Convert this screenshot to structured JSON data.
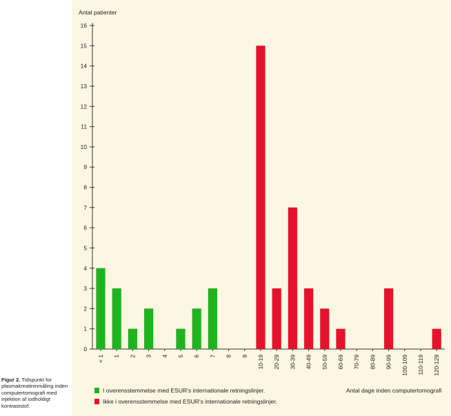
{
  "caption": {
    "label": "Figur 2.",
    "text": "Tidspunkt for plasmakreatininmåling inden computertomografi med injektion af iodholdigt kontraststof."
  },
  "colors": {
    "panel_bg": "#fbf7e2",
    "green": "#1db41d",
    "red": "#e8102a",
    "axis": "#333333"
  },
  "chart_data": {
    "type": "bar",
    "title": "",
    "ylabel": "Antal patienter",
    "xlabel": "Antal dage inden computertomografi",
    "ylim": [
      0,
      16
    ],
    "yticks": [
      0,
      1,
      2,
      3,
      4,
      5,
      6,
      7,
      8,
      9,
      10,
      11,
      12,
      13,
      14,
      15,
      16
    ],
    "categories": [
      "< 1",
      "1",
      "2",
      "3",
      "4",
      "5",
      "6",
      "7",
      "8",
      "9",
      "10-19",
      "20-29",
      "30-39",
      "40-49",
      "50-59",
      "60-69",
      "70-79",
      "80-89",
      "90-99",
      "100-109",
      "110-119",
      "120-129"
    ],
    "series": [
      {
        "name": "I overensstemmelse med ESUR's internationale retningslinjer.",
        "color": "#1db41d",
        "values": [
          4,
          3,
          1,
          2,
          0,
          1,
          2,
          3,
          0,
          0,
          0,
          0,
          0,
          0,
          0,
          0,
          0,
          0,
          0,
          0,
          0,
          0
        ]
      },
      {
        "name": "Ikke i overensstemmelse med ESUR's internationale retningslinjer.",
        "color": "#e8102a",
        "values": [
          0,
          0,
          0,
          0,
          0,
          0,
          0,
          0,
          0,
          0,
          15,
          3,
          7,
          3,
          2,
          1,
          0,
          0,
          3,
          0,
          0,
          1
        ]
      }
    ],
    "legend": "bottom-left"
  }
}
